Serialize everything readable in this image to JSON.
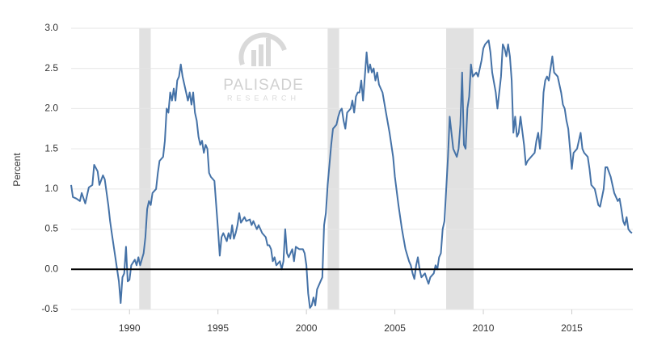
{
  "chart_data": {
    "type": "line",
    "y_label": "Percent",
    "watermark": {
      "name": "PALISADE",
      "sub": "RESEARCH"
    },
    "xlim": [
      1986.7,
      2018.45
    ],
    "xticks": [
      1990,
      1995,
      2000,
      2005,
      2010,
      2015
    ],
    "ylim": [
      -0.5,
      3.0
    ],
    "yticks": [
      {
        "value": 3.0,
        "label": "3.0"
      },
      2.5,
      {
        "value": 2.0,
        "label": "2.0"
      },
      1.5,
      {
        "value": 1.0,
        "label": "1.0"
      },
      0.5,
      {
        "value": 0,
        "label": "0.0"
      },
      -0.5
    ],
    "grid": true,
    "hline": 0,
    "recessions": [
      [
        1990.55,
        1991.2
      ],
      [
        2001.2,
        2001.85
      ],
      [
        2007.9,
        2009.45
      ]
    ],
    "x": [
      1986.7,
      1986.8,
      1987.0,
      1987.2,
      1987.3,
      1987.5,
      1987.7,
      1987.9,
      1988.0,
      1988.2,
      1988.3,
      1988.5,
      1988.6,
      1988.8,
      1988.9,
      1989.0,
      1989.1,
      1989.3,
      1989.4,
      1989.5,
      1989.6,
      1989.7,
      1989.8,
      1989.9,
      1990.0,
      1990.1,
      1990.3,
      1990.4,
      1990.5,
      1990.6,
      1990.8,
      1990.9,
      1991.0,
      1991.1,
      1991.2,
      1991.3,
      1991.5,
      1991.6,
      1991.7,
      1991.9,
      1992.0,
      1992.1,
      1992.2,
      1992.3,
      1992.4,
      1992.5,
      1992.6,
      1992.7,
      1992.8,
      1992.9,
      1993.0,
      1993.1,
      1993.2,
      1993.3,
      1993.4,
      1993.5,
      1993.6,
      1993.7,
      1993.8,
      1993.9,
      1994.0,
      1994.1,
      1994.2,
      1994.3,
      1994.4,
      1994.5,
      1994.6,
      1994.8,
      1994.9,
      1995.0,
      1995.1,
      1995.2,
      1995.3,
      1995.5,
      1995.6,
      1995.7,
      1995.8,
      1995.9,
      1996.0,
      1996.1,
      1996.2,
      1996.3,
      1996.5,
      1996.6,
      1996.8,
      1996.9,
      1997.0,
      1997.2,
      1997.3,
      1997.5,
      1997.7,
      1997.8,
      1997.9,
      1998.0,
      1998.1,
      1998.2,
      1998.3,
      1998.5,
      1998.6,
      1998.7,
      1998.8,
      1998.9,
      1999.0,
      1999.1,
      1999.2,
      1999.3,
      1999.4,
      1999.6,
      1999.8,
      1999.9,
      2000.0,
      2000.1,
      2000.2,
      2000.3,
      2000.4,
      2000.5,
      2000.6,
      2000.8,
      2000.9,
      2001.0,
      2001.1,
      2001.2,
      2001.3,
      2001.4,
      2001.5,
      2001.7,
      2001.8,
      2001.9,
      2002.0,
      2002.1,
      2002.2,
      2002.3,
      2002.5,
      2002.6,
      2002.7,
      2002.8,
      2002.9,
      2003.0,
      2003.1,
      2003.2,
      2003.3,
      2003.4,
      2003.5,
      2003.6,
      2003.7,
      2003.8,
      2003.9,
      2004.0,
      2004.1,
      2004.3,
      2004.5,
      2004.7,
      2004.9,
      2005.0,
      2005.2,
      2005.4,
      2005.6,
      2005.8,
      2005.9,
      2006.0,
      2006.1,
      2006.2,
      2006.3,
      2006.4,
      2006.5,
      2006.7,
      2006.8,
      2006.9,
      2007.0,
      2007.2,
      2007.3,
      2007.4,
      2007.5,
      2007.6,
      2007.7,
      2007.8,
      2007.9,
      2008.0,
      2008.1,
      2008.2,
      2008.3,
      2008.5,
      2008.6,
      2008.7,
      2008.8,
      2008.9,
      2009.0,
      2009.1,
      2009.2,
      2009.3,
      2009.4,
      2009.6,
      2009.7,
      2009.9,
      2010.0,
      2010.1,
      2010.3,
      2010.4,
      2010.5,
      2010.7,
      2010.8,
      2010.9,
      2011.0,
      2011.1,
      2011.2,
      2011.3,
      2011.4,
      2011.5,
      2011.6,
      2011.7,
      2011.8,
      2011.9,
      2012.0,
      2012.1,
      2012.3,
      2012.4,
      2012.5,
      2012.7,
      2012.9,
      2013.0,
      2013.1,
      2013.2,
      2013.3,
      2013.4,
      2013.5,
      2013.6,
      2013.7,
      2013.8,
      2013.9,
      2014.0,
      2014.2,
      2014.4,
      2014.5,
      2014.6,
      2014.7,
      2014.8,
      2014.9,
      2015.0,
      2015.1,
      2015.3,
      2015.4,
      2015.5,
      2015.6,
      2015.7,
      2015.9,
      2016.0,
      2016.1,
      2016.3,
      2016.4,
      2016.5,
      2016.6,
      2016.8,
      2016.9,
      2017.0,
      2017.2,
      2017.3,
      2017.4,
      2017.5,
      2017.6,
      2017.7,
      2017.8,
      2017.9,
      2018.0,
      2018.1,
      2018.2,
      2018.3,
      2018.4
    ],
    "series": [
      {
        "color": "#4572a7",
        "values": [
          1.05,
          0.9,
          0.88,
          0.85,
          0.95,
          0.82,
          1.02,
          1.05,
          1.3,
          1.22,
          1.05,
          1.17,
          1.12,
          0.8,
          0.6,
          0.45,
          0.3,
          0,
          -0.15,
          -0.42,
          -0.1,
          -0.05,
          0.28,
          -0.15,
          -0.13,
          0.05,
          0.12,
          0.05,
          0.15,
          0.05,
          0.2,
          0.4,
          0.75,
          0.85,
          0.8,
          0.95,
          1.0,
          1.2,
          1.35,
          1.4,
          1.6,
          2.0,
          1.95,
          2.2,
          2.1,
          2.25,
          2.1,
          2.35,
          2.4,
          2.55,
          2.4,
          2.3,
          2.2,
          2.1,
          2.2,
          2.05,
          2.2,
          1.95,
          1.85,
          1.65,
          1.55,
          1.6,
          1.45,
          1.55,
          1.5,
          1.2,
          1.15,
          1.1,
          0.8,
          0.5,
          0.17,
          0.4,
          0.45,
          0.35,
          0.45,
          0.38,
          0.55,
          0.38,
          0.45,
          0.55,
          0.7,
          0.58,
          0.65,
          0.6,
          0.62,
          0.55,
          0.6,
          0.5,
          0.55,
          0.45,
          0.4,
          0.3,
          0.3,
          0.25,
          0.1,
          0.15,
          0.05,
          0.1,
          0,
          0.1,
          0.5,
          0.2,
          0.15,
          0.2,
          0.25,
          0.1,
          0.28,
          0.25,
          0.25,
          0.2,
          0.05,
          -0.3,
          -0.48,
          -0.45,
          -0.35,
          -0.45,
          -0.25,
          -0.15,
          -0.1,
          0.55,
          0.7,
          1.05,
          1.3,
          1.55,
          1.75,
          1.8,
          1.9,
          1.97,
          2.0,
          1.85,
          1.75,
          1.95,
          2.0,
          2.1,
          1.95,
          2.15,
          2.2,
          2.2,
          2.35,
          2.1,
          2.4,
          2.7,
          2.45,
          2.55,
          2.45,
          2.5,
          2.35,
          2.45,
          2.3,
          2.2,
          1.95,
          1.7,
          1.4,
          1.15,
          0.8,
          0.5,
          0.25,
          0.1,
          0.05,
          -0.05,
          -0.12,
          0.05,
          0.15,
          0,
          -0.1,
          -0.05,
          -0.12,
          -0.18,
          -0.1,
          -0.05,
          0.05,
          0,
          0.15,
          0.2,
          0.5,
          0.6,
          1.0,
          1.4,
          1.9,
          1.7,
          1.5,
          1.4,
          1.5,
          1.8,
          2.45,
          1.55,
          1.5,
          2.0,
          2.15,
          2.55,
          2.4,
          2.45,
          2.4,
          2.6,
          2.75,
          2.8,
          2.85,
          2.7,
          2.45,
          2.2,
          2.0,
          2.2,
          2.4,
          2.8,
          2.75,
          2.65,
          2.8,
          2.65,
          2.35,
          1.7,
          1.9,
          1.65,
          1.7,
          1.9,
          1.55,
          1.3,
          1.35,
          1.4,
          1.45,
          1.6,
          1.7,
          1.5,
          1.75,
          2.2,
          2.35,
          2.4,
          2.35,
          2.5,
          2.65,
          2.45,
          2.4,
          2.2,
          2.05,
          2.0,
          1.85,
          1.75,
          1.5,
          1.25,
          1.45,
          1.5,
          1.6,
          1.7,
          1.5,
          1.45,
          1.4,
          1.25,
          1.05,
          1.0,
          0.9,
          0.8,
          0.78,
          1.0,
          1.27,
          1.27,
          1.15,
          1.05,
          0.95,
          0.9,
          0.85,
          0.88,
          0.75,
          0.6,
          0.55,
          0.65,
          0.5,
          0.47,
          0.45
        ]
      }
    ]
  }
}
